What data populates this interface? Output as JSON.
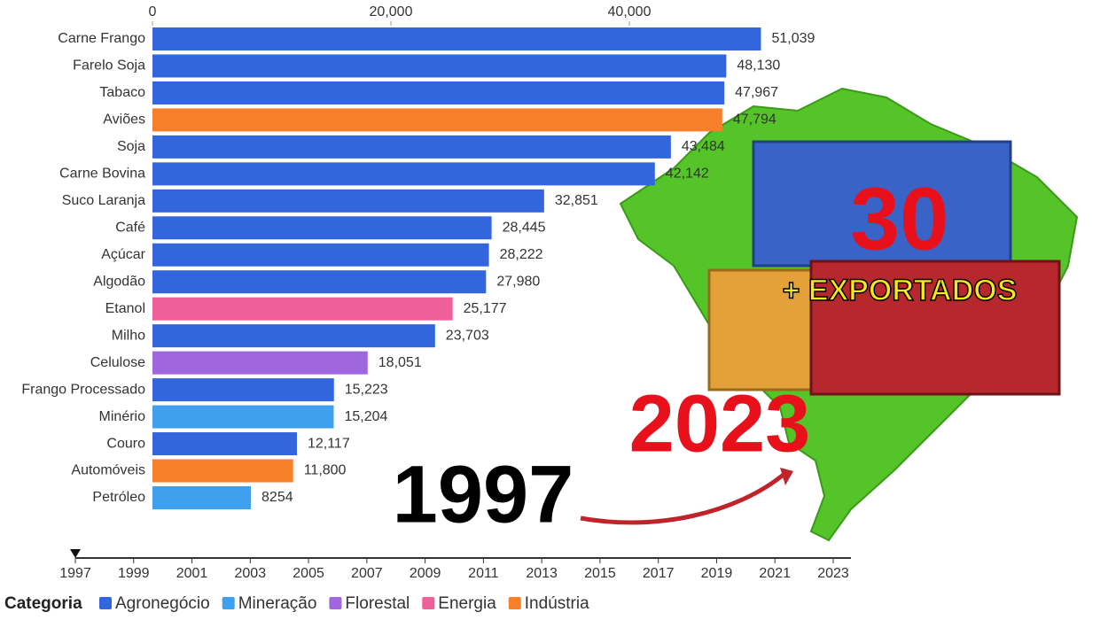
{
  "chart_data": {
    "type": "bar",
    "orientation": "horizontal",
    "categories": [
      "Carne Frango",
      "Farelo Soja",
      "Tabaco",
      "Aviões",
      "Soja",
      "Carne Bovina",
      "Suco Laranja",
      "Café",
      "Açúcar",
      "Algodão",
      "Etanol",
      "Milho",
      "Celulose",
      "Frango Processado",
      "Minério",
      "Couro",
      "Automóveis",
      "Petróleo"
    ],
    "values": [
      51039,
      48130,
      47967,
      47794,
      43484,
      42142,
      32851,
      28445,
      28222,
      27980,
      25177,
      23703,
      18051,
      15223,
      15204,
      12117,
      11800,
      8254
    ],
    "value_labels": [
      "51,039",
      "48,130",
      "47,967",
      "47,794",
      "43,484",
      "42,142",
      "32,851",
      "28,445",
      "28,222",
      "27,980",
      "25,177",
      "23,703",
      "18,051",
      "15,223",
      "15,204",
      "12,117",
      "11,800",
      "8254"
    ],
    "colors": [
      "#3366dd",
      "#3366dd",
      "#3366dd",
      "#f77f2a",
      "#3366dd",
      "#3366dd",
      "#3366dd",
      "#3366dd",
      "#3366dd",
      "#3366dd",
      "#ef5f9a",
      "#3366dd",
      "#a066dd",
      "#3366dd",
      "#3fa0f0",
      "#3366dd",
      "#f77f2a",
      "#3fa0f0"
    ],
    "xlim": [
      0,
      80000
    ],
    "xticks": [
      0,
      {
        "value": 20000,
        "label": "20,000"
      },
      {
        "value": 40000,
        "label": "40,000"
      }
    ],
    "legend": {
      "title": "Categoria",
      "items": [
        {
          "name": "Agronegócio",
          "color": "#3366dd"
        },
        {
          "name": "Mineração",
          "color": "#3fa0f0"
        },
        {
          "name": "Florestal",
          "color": "#a066dd"
        },
        {
          "name": "Energia",
          "color": "#ef5f9a"
        },
        {
          "name": "Indústria",
          "color": "#f77f2a"
        }
      ]
    },
    "timeline": {
      "xlim": [
        1997,
        2023
      ],
      "ticks": [
        1997,
        1999,
        2001,
        2003,
        2005,
        2007,
        2009,
        2011,
        2013,
        2015,
        2017,
        2019,
        2021,
        2023
      ],
      "current": 1997
    },
    "annotations": {
      "current_year": "1997",
      "target_year": "2023",
      "count": "30",
      "subtitle": "+ EXPORTADOS"
    }
  }
}
